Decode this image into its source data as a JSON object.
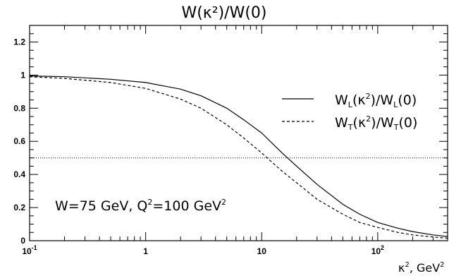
{
  "chart_data": {
    "type": "line",
    "title": "W(κ²)/W(0)",
    "xlabel": "κ², GeV²",
    "ylabel": "",
    "x_scale": "log",
    "xlim": [
      0.1,
      400
    ],
    "ylim": [
      0,
      1.3
    ],
    "grid": false,
    "legend_placement": "top-right",
    "x_ticks": [
      {
        "value": 0.1,
        "mantissa": "10",
        "exp": "-1"
      },
      {
        "value": 1,
        "mantissa": "1",
        "exp": ""
      },
      {
        "value": 10,
        "mantissa": "10",
        "exp": ""
      },
      {
        "value": 100,
        "mantissa": "10",
        "exp": "2"
      }
    ],
    "y_ticks": [
      "0",
      "0.2",
      "0.4",
      "0.6",
      "0.8",
      "1",
      "1.2"
    ],
    "y_tick_values": [
      0,
      0.2,
      0.4,
      0.6,
      0.8,
      1.0,
      1.2
    ],
    "annotation": "W=75 GeV, Q²=100 GeV²",
    "reference_line": {
      "y": 0.5,
      "style": "dotted"
    },
    "series": [
      {
        "name": "W_L(κ²)/W_L(0)",
        "style": "solid",
        "x": [
          0.1,
          0.2,
          0.5,
          1,
          2,
          3,
          5,
          7,
          10,
          15,
          20,
          30,
          50,
          70,
          100,
          150,
          200,
          300,
          400
        ],
        "y": [
          0.995,
          0.99,
          0.975,
          0.955,
          0.915,
          0.875,
          0.8,
          0.73,
          0.65,
          0.53,
          0.45,
          0.34,
          0.22,
          0.16,
          0.11,
          0.075,
          0.055,
          0.035,
          0.025
        ]
      },
      {
        "name": "W_T(κ²)/W_T(0)",
        "style": "dashed",
        "x": [
          0.1,
          0.2,
          0.5,
          1,
          2,
          3,
          5,
          7,
          10,
          15,
          20,
          30,
          50,
          70,
          100,
          150,
          200,
          300,
          400
        ],
        "y": [
          0.99,
          0.98,
          0.955,
          0.92,
          0.855,
          0.8,
          0.7,
          0.62,
          0.53,
          0.42,
          0.35,
          0.25,
          0.16,
          0.11,
          0.08,
          0.05,
          0.035,
          0.022,
          0.015
        ]
      }
    ]
  }
}
